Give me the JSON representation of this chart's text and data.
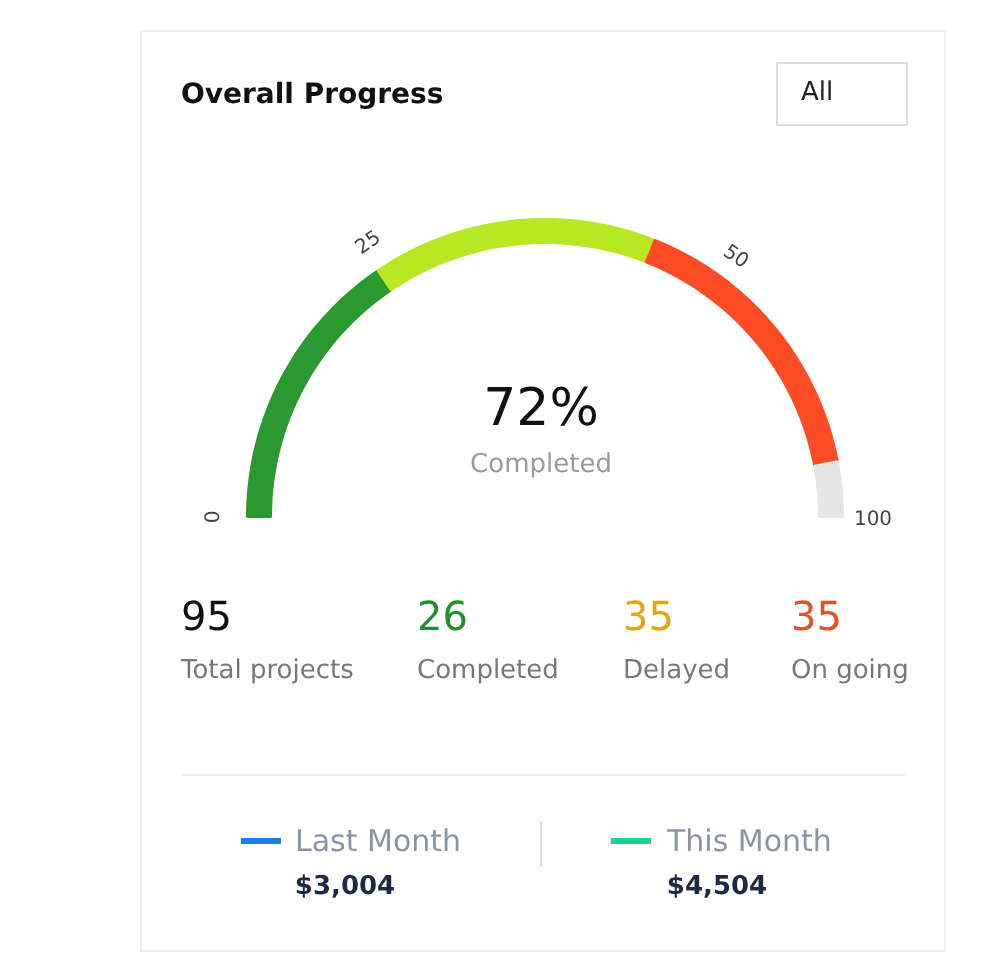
{
  "chart_data": {
    "type": "donut",
    "title": "Overall Progress",
    "categories": [
      null,
      null,
      null,
      null
    ],
    "values": [
      31,
      31,
      32,
      6
    ],
    "colors": [
      "#2a9a30",
      "#b8e824",
      "#fb4c25",
      "#e6e6e6"
    ],
    "annotations": [
      "All",
      "72%",
      "Completed",
      "0",
      "25",
      "50",
      "100",
      "95",
      "Total projects",
      "26",
      "Completed",
      "35",
      "Delayed",
      "35",
      "On going",
      "Last Month",
      "$3,004",
      "This Month",
      "$4,504"
    ]
  }
}
